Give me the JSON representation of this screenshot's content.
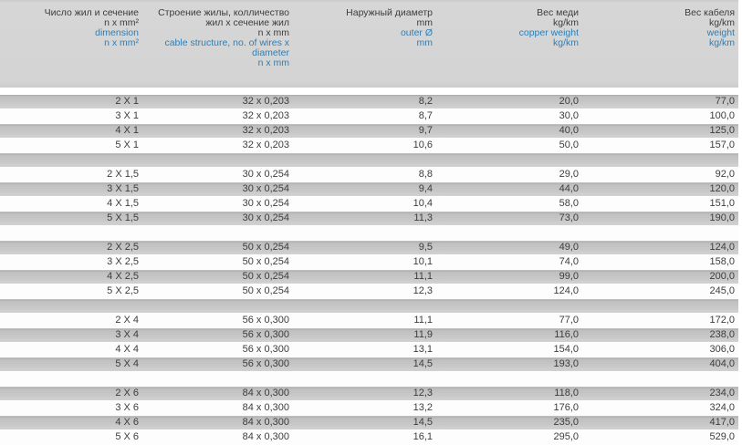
{
  "colors": {
    "accent_blue": "#2e7fb5",
    "header_bg": "#d4d4d4",
    "row_gray": "#c8c8c8",
    "row_white": "#fdfdfd",
    "text_dark": "#3d3d3d"
  },
  "table": {
    "header": {
      "columns": [
        {
          "id": "dimension",
          "ru": [
            "Число жил и сечение",
            "n x mm²"
          ],
          "en": [
            "dimension",
            "n x mm²"
          ]
        },
        {
          "id": "structure",
          "ru": [
            "Строение жилы, колличество",
            "жил x сечение жил",
            "n x mm"
          ],
          "en": [
            "cable structure, no. of wires x",
            "diameter",
            "n x mm"
          ]
        },
        {
          "id": "outer-diameter",
          "ru": [
            "Наружный диаметр",
            "mm"
          ],
          "en": [
            "outer Ø",
            "mm"
          ]
        },
        {
          "id": "copper-weight",
          "ru": [
            "Вес меди",
            "kg/km"
          ],
          "en": [
            "copper weight",
            "kg/km"
          ]
        },
        {
          "id": "cable-weight",
          "ru": [
            "Вес кабеля",
            "kg/km"
          ],
          "en": [
            "weight",
            "kg/km"
          ]
        }
      ]
    },
    "groups": [
      {
        "rows": [
          [
            "2 X 1",
            "32 x 0,203",
            "8,2",
            "20,0",
            "77,0"
          ],
          [
            "3 X 1",
            "32 x 0,203",
            "8,7",
            "30,0",
            "100,0"
          ],
          [
            "4 X 1",
            "32 x 0,203",
            "9,7",
            "40,0",
            "125,0"
          ],
          [
            "5 X 1",
            "32 x 0,203",
            "10,6",
            "50,0",
            "157,0"
          ]
        ]
      },
      {
        "rows": [
          [
            "2 X 1,5",
            "30 x 0,254",
            "8,8",
            "29,0",
            "92,0"
          ],
          [
            "3 X 1,5",
            "30 x 0,254",
            "9,4",
            "44,0",
            "120,0"
          ],
          [
            "4 X 1,5",
            "30 x 0,254",
            "10,4",
            "58,0",
            "151,0"
          ],
          [
            "5 X 1,5",
            "30 x 0,254",
            "11,3",
            "73,0",
            "190,0"
          ]
        ]
      },
      {
        "rows": [
          [
            "2 X 2,5",
            "50 x 0,254",
            "9,5",
            "49,0",
            "124,0"
          ],
          [
            "3 X 2,5",
            "50 x 0,254",
            "10,1",
            "74,0",
            "158,0"
          ],
          [
            "4 X 2,5",
            "50 x 0,254",
            "11,1",
            "99,0",
            "200,0"
          ],
          [
            "5 X 2,5",
            "50 x 0,254",
            "12,3",
            "124,0",
            "245,0"
          ]
        ]
      },
      {
        "rows": [
          [
            "2 X 4",
            "56 x 0,300",
            "11,1",
            "77,0",
            "172,0"
          ],
          [
            "3 X 4",
            "56 x 0,300",
            "11,9",
            "116,0",
            "238,0"
          ],
          [
            "4 X 4",
            "56 x 0,300",
            "13,1",
            "154,0",
            "306,0"
          ],
          [
            "5 X 4",
            "56 x 0,300",
            "14,5",
            "193,0",
            "404,0"
          ]
        ]
      },
      {
        "rows": [
          [
            "2 X 6",
            "84 x 0,300",
            "12,3",
            "118,0",
            "234,0"
          ],
          [
            "3 X 6",
            "84 x 0,300",
            "13,2",
            "176,0",
            "324,0"
          ],
          [
            "4 X 6",
            "84 x 0,300",
            "14,5",
            "235,0",
            "417,0"
          ],
          [
            "5 X 6",
            "84 x 0,300",
            "16,1",
            "295,0",
            "529,0"
          ]
        ]
      }
    ]
  }
}
